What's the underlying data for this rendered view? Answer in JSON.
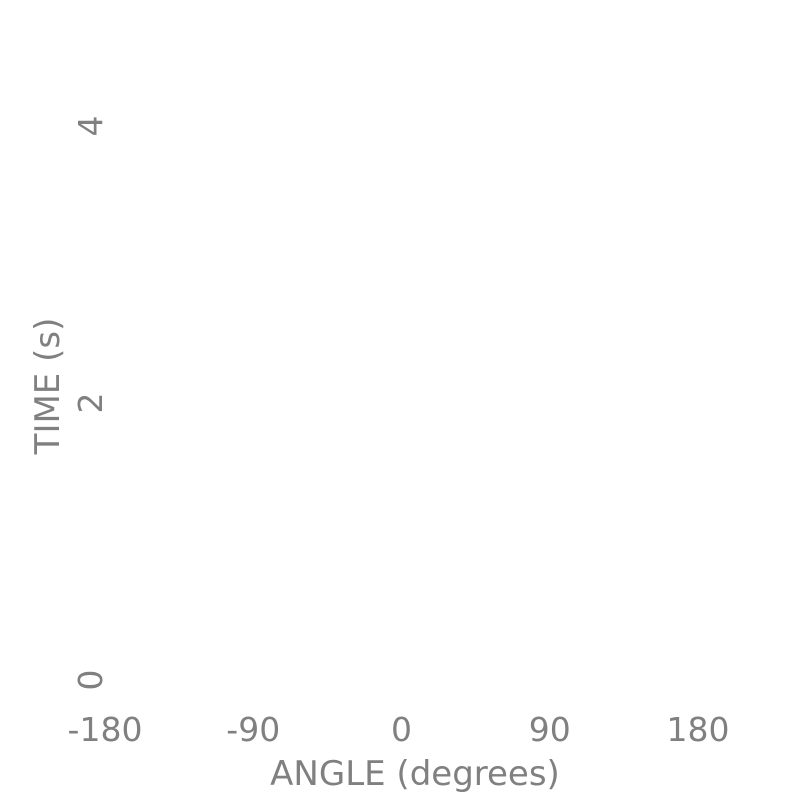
{
  "chart_data": {
    "type": "scatter",
    "title": "",
    "xlabel": "ANGLE (degrees)",
    "ylabel": "TIME (s)",
    "xlim": [
      -180,
      180
    ],
    "ylim": [
      0,
      4
    ],
    "x_ticks": [
      -180,
      -90,
      0,
      90,
      180
    ],
    "y_ticks": [
      0,
      2,
      4
    ],
    "grid": false,
    "series": []
  }
}
